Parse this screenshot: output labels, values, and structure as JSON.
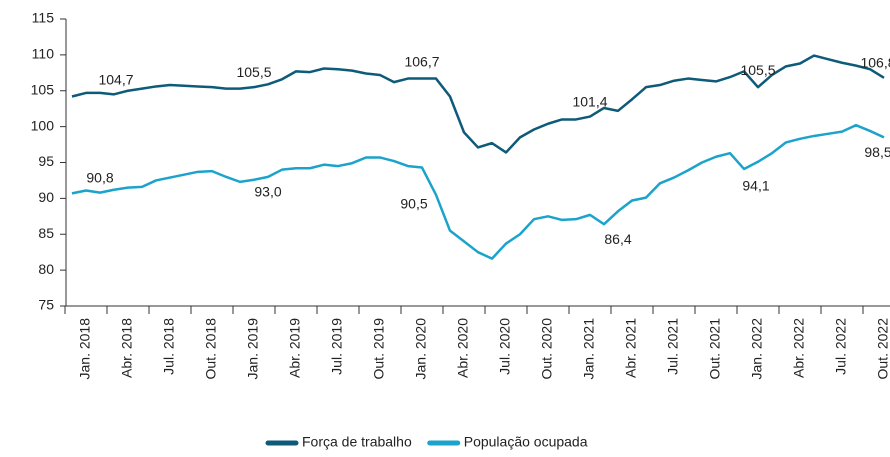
{
  "chart_data": {
    "type": "line",
    "categories": [
      null,
      "Jan. 2018",
      null,
      null,
      "Abr. 2018",
      null,
      null,
      "Jul. 2018",
      null,
      null,
      "Out. 2018",
      null,
      null,
      "Jan. 2019",
      null,
      null,
      "Abr. 2019",
      null,
      null,
      "Jul. 2019",
      null,
      null,
      "Out. 2019",
      null,
      null,
      "Jan. 2020",
      null,
      null,
      "Abr. 2020",
      null,
      null,
      "Jul. 2020",
      null,
      null,
      "Out. 2020",
      null,
      null,
      "Jan. 2021",
      null,
      null,
      "Abr. 2021",
      null,
      null,
      "Jul. 2021",
      null,
      null,
      "Out. 2021",
      null,
      null,
      "Jan. 2022",
      null,
      null,
      "Abr. 2022",
      null,
      null,
      "Jul. 2022",
      null,
      null,
      "Out. 2022"
    ],
    "series": [
      {
        "name": "Força de trabalho",
        "color": "#0d5b78",
        "values": [
          104.2,
          104.7,
          104.7,
          104.5,
          105.0,
          105.3,
          105.6,
          105.8,
          105.7,
          105.6,
          105.5,
          105.3,
          105.3,
          105.5,
          105.9,
          106.6,
          107.7,
          107.6,
          108.1,
          108.0,
          107.8,
          107.4,
          107.2,
          106.2,
          106.7,
          106.7,
          106.7,
          104.2,
          99.2,
          97.1,
          97.7,
          96.4,
          98.5,
          99.6,
          100.4,
          101.0,
          101.0,
          101.4,
          102.6,
          102.2,
          103.8,
          105.5,
          105.8,
          106.4,
          106.7,
          106.5,
          106.3,
          106.9,
          107.7,
          105.5,
          107.2,
          108.4,
          108.8,
          109.9,
          109.4,
          108.9,
          108.5,
          108.0,
          106.8
        ],
        "value_labels": [
          null,
          null,
          "104,7",
          null,
          null,
          null,
          null,
          null,
          null,
          null,
          null,
          null,
          null,
          "105,5",
          null,
          null,
          null,
          null,
          null,
          null,
          null,
          null,
          null,
          null,
          null,
          "106,7",
          null,
          null,
          null,
          null,
          null,
          null,
          null,
          null,
          null,
          null,
          null,
          "101,4",
          null,
          null,
          null,
          null,
          null,
          null,
          null,
          null,
          null,
          null,
          null,
          "105,5",
          null,
          null,
          null,
          null,
          null,
          null,
          null,
          null,
          "106,8"
        ]
      },
      {
        "name": "População ocupada",
        "color": "#1ba3cc",
        "values": [
          90.7,
          91.1,
          90.8,
          91.2,
          91.5,
          91.6,
          92.5,
          92.9,
          93.3,
          93.7,
          93.8,
          93.0,
          92.3,
          92.6,
          93.0,
          94.0,
          94.2,
          94.2,
          94.7,
          94.5,
          94.9,
          95.7,
          95.7,
          95.2,
          94.5,
          94.3,
          90.5,
          85.5,
          84.0,
          82.5,
          81.6,
          83.7,
          85.0,
          87.1,
          87.5,
          87.0,
          87.1,
          87.7,
          86.4,
          88.2,
          89.7,
          90.1,
          92.1,
          92.9,
          93.9,
          95.0,
          95.8,
          96.3,
          94.1,
          95.1,
          96.3,
          97.8,
          98.3,
          98.7,
          99.0,
          99.3,
          100.2,
          99.4,
          98.5
        ],
        "value_labels": [
          null,
          null,
          "90,8",
          null,
          null,
          null,
          null,
          null,
          null,
          null,
          null,
          null,
          null,
          null,
          "93,0",
          null,
          null,
          null,
          null,
          null,
          null,
          null,
          null,
          null,
          null,
          null,
          "90,5",
          null,
          null,
          null,
          null,
          null,
          null,
          null,
          null,
          null,
          null,
          null,
          "86,4",
          null,
          null,
          null,
          null,
          null,
          null,
          null,
          null,
          null,
          "94,1",
          null,
          null,
          null,
          null,
          null,
          null,
          null,
          null,
          null,
          "98,5"
        ]
      }
    ],
    "ylim": [
      75,
      115
    ],
    "yticks": [
      75,
      80,
      85,
      90,
      95,
      100,
      105,
      110,
      115
    ],
    "grid": false,
    "legend": "bottom"
  }
}
